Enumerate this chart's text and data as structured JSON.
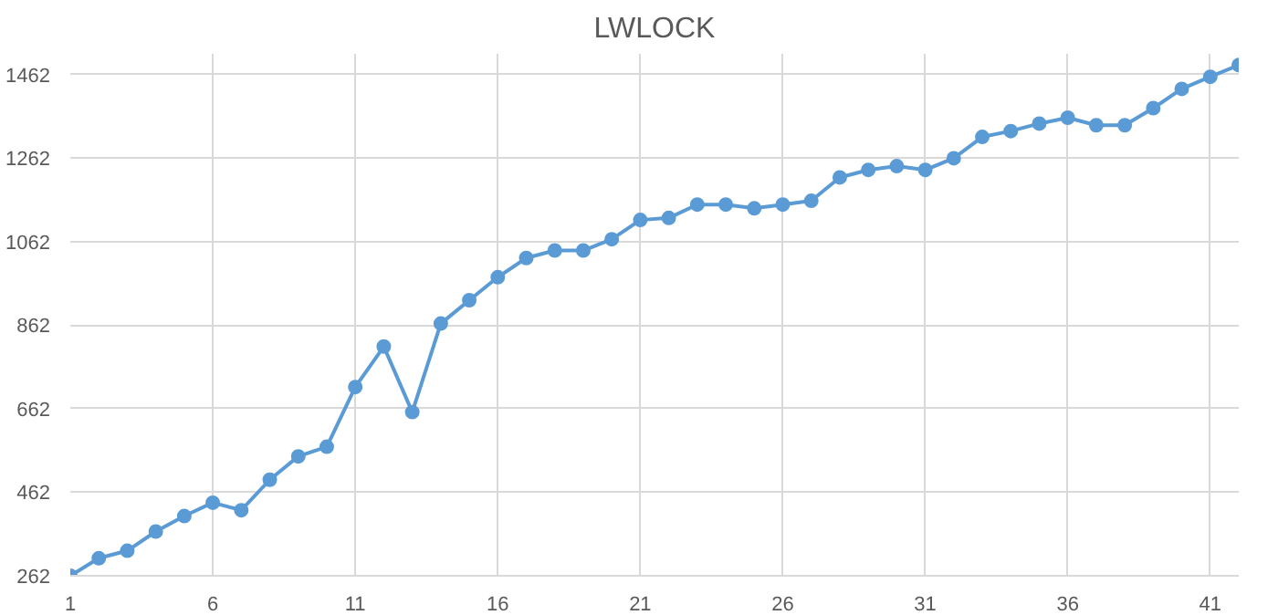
{
  "chart_data": {
    "type": "line",
    "title": "LWLOCK",
    "x": [
      1,
      2,
      3,
      4,
      5,
      6,
      7,
      8,
      9,
      10,
      11,
      12,
      13,
      14,
      15,
      16,
      17,
      18,
      19,
      20,
      21,
      22,
      23,
      24,
      25,
      26,
      27,
      28,
      29,
      30,
      31,
      32,
      33,
      34,
      35,
      36,
      37,
      38,
      39,
      40,
      41,
      42
    ],
    "series": [
      {
        "color": "#5b9bd5",
        "values": [
          262,
          304,
          322,
          368,
          405,
          437,
          419,
          492,
          548,
          571,
          714,
          811,
          654,
          866,
          922,
          977,
          1023,
          1041,
          1041,
          1068,
          1114,
          1119,
          1151,
          1151,
          1142,
          1151,
          1160,
          1216,
          1234,
          1243,
          1234,
          1262,
          1313,
          1327,
          1345,
          1359,
          1341,
          1341,
          1382,
          1428,
          1457,
          1485
        ]
      }
    ],
    "xlim": [
      1,
      42
    ],
    "xticks": [
      1,
      6,
      11,
      16,
      21,
      26,
      31,
      36,
      41
    ],
    "ylim": [
      262,
      1512
    ],
    "yticks": [
      262,
      462,
      662,
      862,
      1062,
      1262,
      1462
    ],
    "grid": true,
    "marker": "circle",
    "line_style": "solid"
  }
}
